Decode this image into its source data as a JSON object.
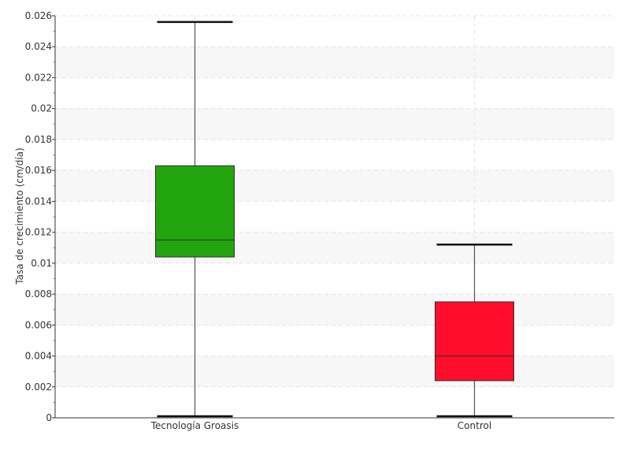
{
  "chart_data": {
    "type": "boxplot",
    "ylabel": "Tasa de crecimiento (cm/día)",
    "xlabel": "",
    "ylim": [
      0,
      0.026
    ],
    "yticks": [
      {
        "value": 0,
        "label": "0"
      },
      {
        "value": 0.002,
        "label": "0.002"
      },
      {
        "value": 0.004,
        "label": "0.004"
      },
      {
        "value": 0.006,
        "label": "0.006"
      },
      {
        "value": 0.008,
        "label": "0.008"
      },
      {
        "value": 0.01,
        "label": "0.01"
      },
      {
        "value": 0.012,
        "label": "0.012"
      },
      {
        "value": 0.014,
        "label": "0.014"
      },
      {
        "value": 0.016,
        "label": "0.016"
      },
      {
        "value": 0.018,
        "label": "0.018"
      },
      {
        "value": 0.02,
        "label": "0.02"
      },
      {
        "value": 0.022,
        "label": "0.022"
      },
      {
        "value": 0.024,
        "label": "0.024"
      },
      {
        "value": 0.026,
        "label": "0.026"
      }
    ],
    "categories": [
      "Tecnología Groasis",
      "Control"
    ],
    "boxes": [
      {
        "category": "Tecnología Groasis",
        "min": 0.0001,
        "q1": 0.0104,
        "median": 0.0115,
        "q3": 0.0163,
        "max": 0.0256,
        "color": "#22a50c"
      },
      {
        "category": "Control",
        "min": 0.0001,
        "q1": 0.0024,
        "median": 0.004,
        "q3": 0.0075,
        "max": 0.0112,
        "color": "#ff0d2a"
      }
    ],
    "grid": true,
    "legend": "none"
  }
}
